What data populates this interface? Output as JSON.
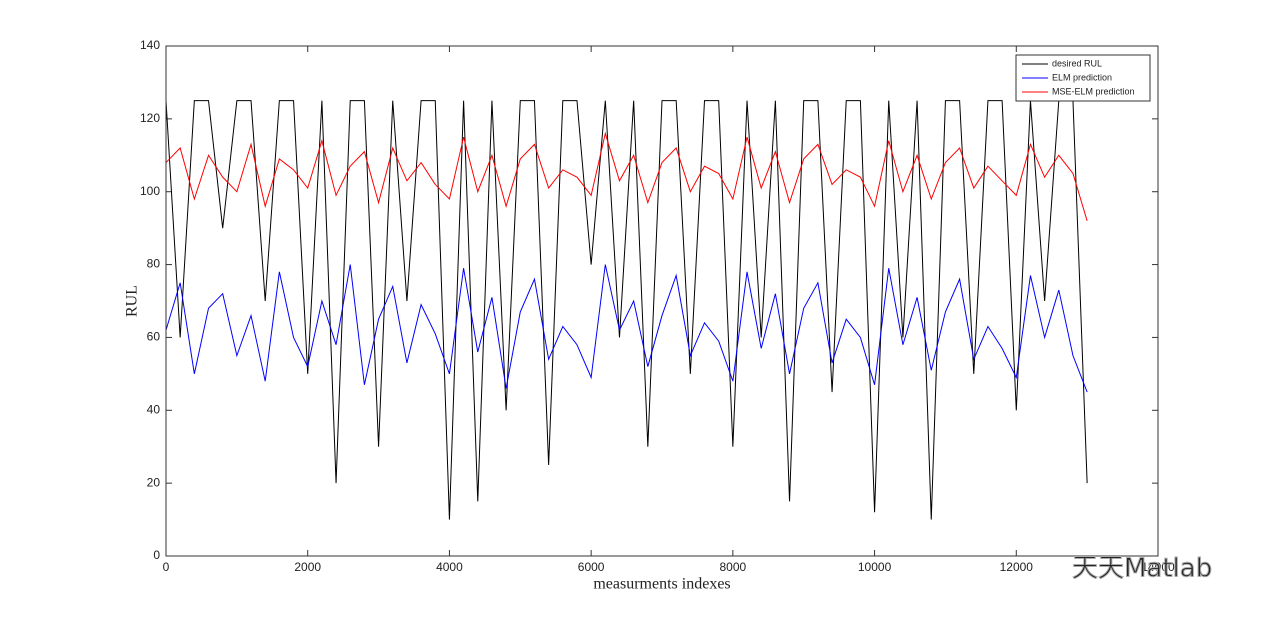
{
  "chart_data": {
    "type": "line",
    "xlabel": "measurments indexes",
    "ylabel": "RUL",
    "x": [
      0,
      200,
      400,
      600,
      800,
      1000,
      1200,
      1400,
      1600,
      1800,
      2000,
      2200,
      2400,
      2600,
      2800,
      3000,
      3200,
      3400,
      3600,
      3800,
      4000,
      4200,
      4400,
      4600,
      4800,
      5000,
      5200,
      5400,
      5600,
      5800,
      6000,
      6200,
      6400,
      6600,
      6800,
      7000,
      7200,
      7400,
      7600,
      7800,
      8000,
      8200,
      8400,
      8600,
      8800,
      9000,
      9200,
      9400,
      9600,
      9800,
      10000,
      10200,
      10400,
      10600,
      10800,
      11000,
      11200,
      11400,
      11600,
      11800,
      12000,
      12200,
      12400,
      12600,
      12800,
      13000
    ],
    "series": [
      {
        "name": "desired RUL",
        "color": "#000000",
        "values": [
          125,
          60,
          125,
          125,
          90,
          125,
          125,
          70,
          125,
          125,
          50,
          125,
          20,
          125,
          125,
          30,
          125,
          70,
          125,
          125,
          10,
          125,
          15,
          125,
          40,
          125,
          125,
          25,
          125,
          125,
          80,
          125,
          60,
          125,
          30,
          125,
          125,
          50,
          125,
          125,
          30,
          125,
          60,
          125,
          15,
          125,
          125,
          45,
          125,
          125,
          12,
          125,
          60,
          125,
          10,
          125,
          125,
          50,
          125,
          125,
          40,
          125,
          70,
          125,
          125,
          20
        ]
      },
      {
        "name": "ELM prediction",
        "color": "#0000ff",
        "values": [
          62,
          75,
          50,
          68,
          72,
          55,
          66,
          48,
          78,
          60,
          52,
          70,
          58,
          80,
          47,
          65,
          74,
          53,
          69,
          61,
          50,
          79,
          56,
          71,
          46,
          67,
          76,
          54,
          63,
          58,
          49,
          80,
          62,
          70,
          52,
          66,
          77,
          55,
          64,
          59,
          48,
          78,
          57,
          72,
          50,
          68,
          75,
          53,
          65,
          60,
          47,
          79,
          58,
          71,
          51,
          67,
          76,
          54,
          63,
          57,
          49,
          77,
          60,
          73,
          55,
          45
        ]
      },
      {
        "name": "MSE-ELM prediction",
        "color": "#ff0000",
        "values": [
          108,
          112,
          98,
          110,
          104,
          100,
          113,
          96,
          109,
          106,
          101,
          114,
          99,
          107,
          111,
          97,
          112,
          103,
          108,
          102,
          98,
          115,
          100,
          110,
          96,
          109,
          113,
          101,
          106,
          104,
          99,
          116,
          103,
          110,
          97,
          108,
          112,
          100,
          107,
          105,
          98,
          115,
          101,
          111,
          97,
          109,
          113,
          102,
          106,
          104,
          96,
          114,
          100,
          110,
          98,
          108,
          112,
          101,
          107,
          103,
          99,
          113,
          104,
          110,
          105,
          92
        ]
      }
    ],
    "xlim": [
      0,
      14000
    ],
    "xticks": [
      0,
      2000,
      4000,
      6000,
      8000,
      10000,
      12000,
      14000
    ],
    "ylim": [
      0,
      140
    ],
    "yticks": [
      0,
      20,
      40,
      60,
      80,
      100,
      120,
      140
    ],
    "legend": "top-right",
    "grid": false,
    "watermark": "天天Matlab"
  }
}
